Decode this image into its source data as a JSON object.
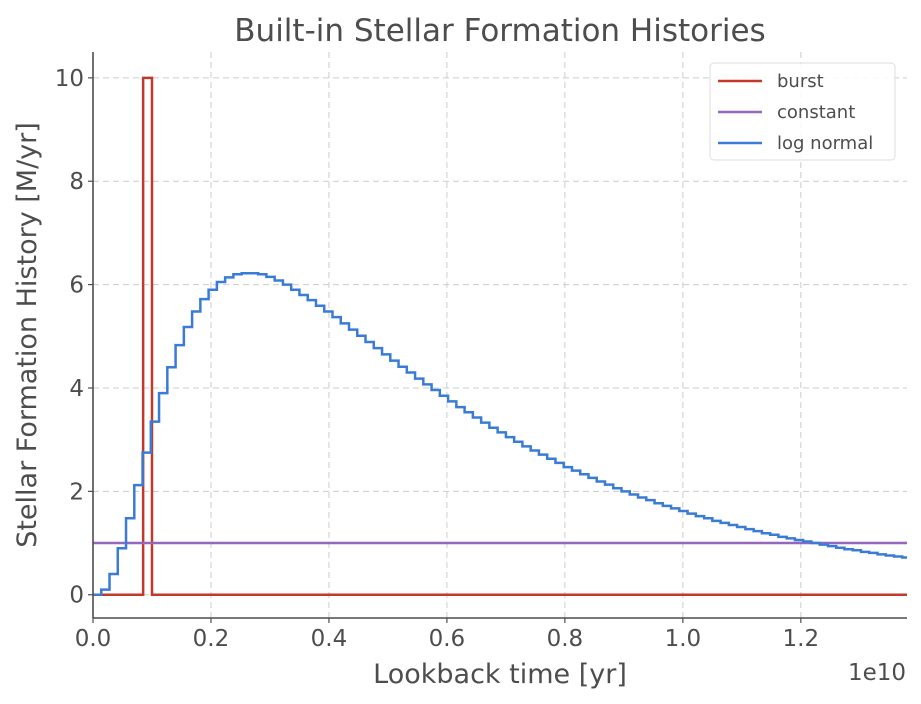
{
  "chart_data": {
    "type": "line",
    "title": "Built-in Stellar Formation Histories",
    "xlabel": "Lookback time [yr]",
    "ylabel": "Stellar Formation History [M/yr]",
    "x_offset_label": "1e10",
    "xlim": [
      0,
      1.38
    ],
    "ylim": [
      -0.45,
      10.5
    ],
    "x_ticks": [
      0.0,
      0.2,
      0.4,
      0.6,
      0.8,
      1.0,
      1.2
    ],
    "x_tick_labels": [
      "0.0",
      "0.2",
      "0.4",
      "0.6",
      "0.8",
      "1.0",
      "1.2"
    ],
    "y_ticks": [
      0,
      2,
      4,
      6,
      8,
      10
    ],
    "y_tick_labels": [
      "0",
      "2",
      "4",
      "6",
      "8",
      "10"
    ],
    "grid": true,
    "legend_position": "top-right",
    "series": [
      {
        "name": "burst",
        "color": "#c0392b",
        "step": true,
        "x": [
          0.0,
          0.085,
          0.085,
          0.1,
          0.1,
          1.38
        ],
        "y": [
          0,
          0,
          10,
          10,
          0,
          0
        ]
      },
      {
        "name": "constant",
        "color": "#9467bd",
        "step": false,
        "x": [
          0.0,
          1.38
        ],
        "y": [
          1,
          1
        ]
      },
      {
        "name": "log normal",
        "color": "#3a7bd5",
        "step": true,
        "x": [
          0.0,
          0.014,
          0.028,
          0.042,
          0.056,
          0.07,
          0.084,
          0.098,
          0.112,
          0.126,
          0.14,
          0.154,
          0.168,
          0.182,
          0.196,
          0.21,
          0.224,
          0.238,
          0.252,
          0.266,
          0.28,
          0.294,
          0.308,
          0.322,
          0.336,
          0.35,
          0.364,
          0.378,
          0.392,
          0.406,
          0.42,
          0.434,
          0.448,
          0.462,
          0.476,
          0.49,
          0.504,
          0.518,
          0.532,
          0.546,
          0.56,
          0.574,
          0.588,
          0.602,
          0.616,
          0.63,
          0.644,
          0.658,
          0.672,
          0.686,
          0.7,
          0.714,
          0.728,
          0.742,
          0.756,
          0.77,
          0.784,
          0.798,
          0.812,
          0.826,
          0.84,
          0.854,
          0.868,
          0.882,
          0.896,
          0.91,
          0.924,
          0.938,
          0.952,
          0.966,
          0.98,
          0.994,
          1.008,
          1.022,
          1.036,
          1.05,
          1.064,
          1.078,
          1.092,
          1.106,
          1.12,
          1.134,
          1.148,
          1.162,
          1.176,
          1.19,
          1.204,
          1.218,
          1.232,
          1.246,
          1.26,
          1.274,
          1.288,
          1.302,
          1.316,
          1.33,
          1.344,
          1.358,
          1.372
        ],
        "y": [
          0.0,
          0.1,
          0.4,
          0.9,
          1.48,
          2.12,
          2.75,
          3.35,
          3.9,
          4.4,
          4.83,
          5.18,
          5.48,
          5.72,
          5.9,
          6.05,
          6.14,
          6.2,
          6.22,
          6.22,
          6.2,
          6.15,
          6.08,
          6.0,
          5.9,
          5.8,
          5.7,
          5.59,
          5.48,
          5.37,
          5.25,
          5.13,
          5.01,
          4.89,
          4.77,
          4.65,
          4.53,
          4.41,
          4.3,
          4.18,
          4.07,
          3.96,
          3.85,
          3.74,
          3.63,
          3.53,
          3.43,
          3.33,
          3.23,
          3.14,
          3.05,
          2.96,
          2.87,
          2.79,
          2.71,
          2.63,
          2.55,
          2.47,
          2.4,
          2.33,
          2.26,
          2.19,
          2.13,
          2.06,
          2.0,
          1.94,
          1.88,
          1.83,
          1.77,
          1.72,
          1.67,
          1.62,
          1.57,
          1.52,
          1.48,
          1.43,
          1.39,
          1.35,
          1.31,
          1.27,
          1.23,
          1.19,
          1.16,
          1.12,
          1.09,
          1.06,
          1.03,
          1.0,
          0.97,
          0.94,
          0.91,
          0.88,
          0.86,
          0.83,
          0.81,
          0.78,
          0.76,
          0.74,
          0.72
        ]
      }
    ]
  }
}
